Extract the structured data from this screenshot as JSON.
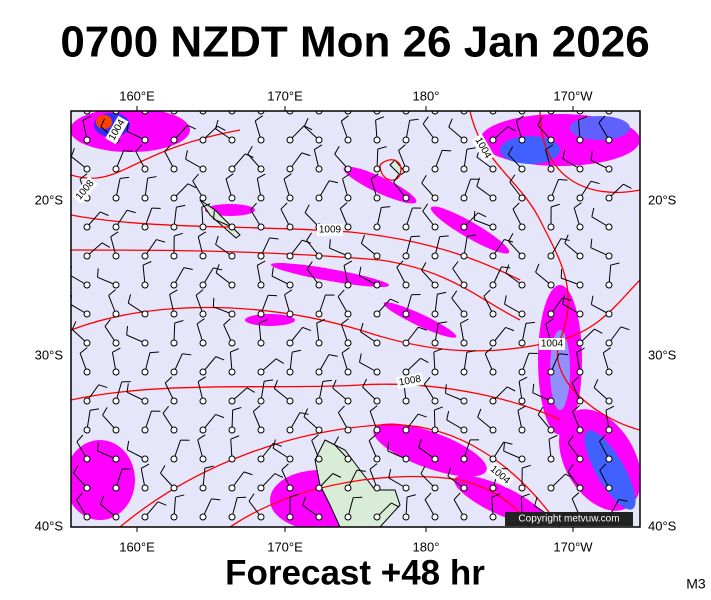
{
  "header": {
    "title": "0700 NZDT Mon 26 Jan 2026"
  },
  "axes": {
    "top_labels": [
      "160°E",
      "170°E",
      "180°",
      "170°W"
    ],
    "bottom_labels": [
      "160°E",
      "170°E",
      "180°",
      "170°W"
    ],
    "left_labels": [
      "20°S",
      "30°S",
      "40°S"
    ],
    "right_labels": [
      "20°S",
      "30°S",
      "40°S"
    ]
  },
  "isobar_labels": [
    "1004",
    "1008",
    "1004",
    "1009",
    "1004",
    "1008",
    "1004"
  ],
  "copyright": "Copyright metvuw.com",
  "footer": {
    "forecast": "Forecast +48 hr",
    "model": "M3"
  }
}
